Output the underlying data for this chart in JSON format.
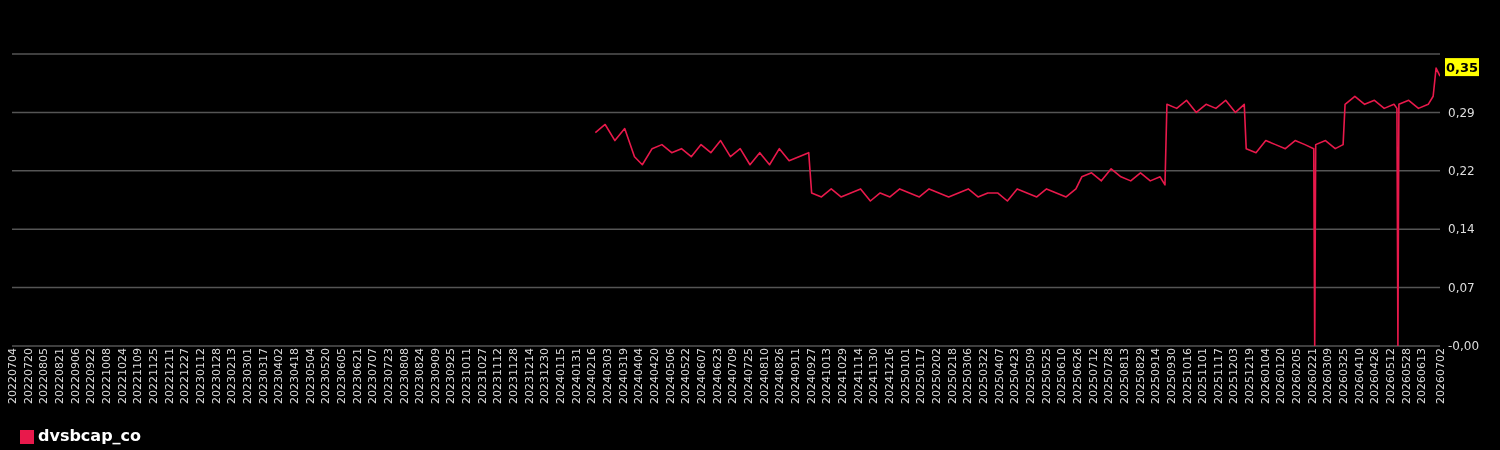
{
  "chart_data": {
    "type": "line",
    "x": [
      "2024-02-20",
      "2024-03-01",
      "2024-03-11",
      "2024-03-21",
      "2024-03-31",
      "2024-04-08",
      "2024-04-18",
      "2024-04-28",
      "2024-05-08",
      "2024-05-18",
      "2024-05-28",
      "2024-06-07",
      "2024-06-17",
      "2024-06-27",
      "2024-07-07",
      "2024-07-17",
      "2024-07-27",
      "2024-08-06",
      "2024-08-16",
      "2024-08-26",
      "2024-09-05",
      "2024-09-15",
      "2024-09-25",
      "2024-09-28",
      "2024-10-08",
      "2024-10-18",
      "2024-10-28",
      "2024-11-07",
      "2024-11-17",
      "2024-11-27",
      "2024-12-07",
      "2024-12-17",
      "2024-12-27",
      "2025-01-06",
      "2025-01-16",
      "2025-01-26",
      "2025-02-05",
      "2025-02-15",
      "2025-02-25",
      "2025-03-07",
      "2025-03-17",
      "2025-03-27",
      "2025-04-06",
      "2025-04-16",
      "2025-04-26",
      "2025-05-06",
      "2025-05-16",
      "2025-05-26",
      "2025-06-05",
      "2025-06-15",
      "2025-06-25",
      "2025-07-01",
      "2025-07-11",
      "2025-07-21",
      "2025-07-31",
      "2025-08-10",
      "2025-08-20",
      "2025-08-30",
      "2025-09-09",
      "2025-09-19",
      "2025-09-24",
      "2025-09-26",
      "2025-10-06",
      "2025-10-16",
      "2025-10-26",
      "2025-11-05",
      "2025-11-15",
      "2025-11-25",
      "2025-12-05",
      "2025-12-14",
      "2025-12-16",
      "2025-12-26",
      "2026-01-05",
      "2026-01-15",
      "2026-01-25",
      "2026-02-04",
      "2026-02-14",
      "2026-02-23",
      "2026-02-24",
      "2026-02-25",
      "2026-03-07",
      "2026-03-17",
      "2026-03-25",
      "2026-03-27",
      "2026-04-06",
      "2026-04-16",
      "2026-04-26",
      "2026-05-06",
      "2026-05-16",
      "2026-05-19",
      "2026-05-20",
      "2026-05-21",
      "2026-05-31",
      "2026-06-10",
      "2026-06-20",
      "2026-06-25",
      "2026-06-28",
      "2026-07-02"
    ],
    "series": [
      {
        "name": "dvsbcap_co",
        "color": "#e8194b",
        "values": [
          0.265,
          0.275,
          0.255,
          0.27,
          0.235,
          0.225,
          0.245,
          0.25,
          0.24,
          0.245,
          0.235,
          0.25,
          0.24,
          0.255,
          0.235,
          0.245,
          0.225,
          0.24,
          0.225,
          0.245,
          0.23,
          0.235,
          0.24,
          0.19,
          0.185,
          0.195,
          0.185,
          0.19,
          0.195,
          0.18,
          0.19,
          0.185,
          0.195,
          0.19,
          0.185,
          0.195,
          0.19,
          0.185,
          0.19,
          0.195,
          0.185,
          0.19,
          0.19,
          0.18,
          0.195,
          0.19,
          0.185,
          0.195,
          0.19,
          0.185,
          0.195,
          0.21,
          0.215,
          0.205,
          0.22,
          0.21,
          0.205,
          0.215,
          0.205,
          0.21,
          0.2,
          0.3,
          0.295,
          0.305,
          0.29,
          0.3,
          0.295,
          0.305,
          0.29,
          0.3,
          0.245,
          0.24,
          0.255,
          0.25,
          0.245,
          0.255,
          0.25,
          0.245,
          0,
          0.25,
          0.255,
          0.245,
          0.25,
          0.3,
          0.31,
          0.3,
          0.305,
          0.295,
          0.3,
          0.295,
          0,
          0.3,
          0.305,
          0.295,
          0.3,
          0.31,
          0.345,
          0.335
        ]
      }
    ],
    "xlim": [
      "2022-07-04",
      "2026-07-02"
    ],
    "xticks": [
      {
        "value": "2022-07-04",
        "label": "20220704"
      },
      {
        "value": "2022-07-20",
        "label": "20220720"
      },
      {
        "value": "2022-08-05",
        "label": "20220805"
      },
      {
        "value": "2022-08-21",
        "label": "20220821"
      },
      {
        "value": "2022-09-06",
        "label": "20220906"
      },
      {
        "value": "2022-09-22",
        "label": "20220922"
      },
      {
        "value": "2022-10-08",
        "label": "20221008"
      },
      {
        "value": "2022-10-24",
        "label": "20221024"
      },
      {
        "value": "2022-11-09",
        "label": "20221109"
      },
      {
        "value": "2022-11-25",
        "label": "20221125"
      },
      {
        "value": "2022-12-11",
        "label": "20221211"
      },
      {
        "value": "2022-12-27",
        "label": "20221227"
      },
      {
        "value": "2023-01-12",
        "label": "20230112"
      },
      {
        "value": "2023-01-28",
        "label": "20230128"
      },
      {
        "value": "2023-02-13",
        "label": "20230213"
      },
      {
        "value": "2023-03-01",
        "label": "20230301"
      },
      {
        "value": "2023-03-17",
        "label": "20230317"
      },
      {
        "value": "2023-04-02",
        "label": "20230402"
      },
      {
        "value": "2023-04-18",
        "label": "20230418"
      },
      {
        "value": "2023-05-04",
        "label": "20230504"
      },
      {
        "value": "2023-05-20",
        "label": "20230520"
      },
      {
        "value": "2023-06-05",
        "label": "20230605"
      },
      {
        "value": "2023-06-21",
        "label": "20230621"
      },
      {
        "value": "2023-07-07",
        "label": "20230707"
      },
      {
        "value": "2023-07-23",
        "label": "20230723"
      },
      {
        "value": "2023-08-08",
        "label": "20230808"
      },
      {
        "value": "2023-08-24",
        "label": "20230824"
      },
      {
        "value": "2023-09-09",
        "label": "20230909"
      },
      {
        "value": "2023-09-25",
        "label": "20230925"
      },
      {
        "value": "2023-10-11",
        "label": "20231011"
      },
      {
        "value": "2023-10-27",
        "label": "20231027"
      },
      {
        "value": "2023-11-12",
        "label": "20231112"
      },
      {
        "value": "2023-11-28",
        "label": "20231128"
      },
      {
        "value": "2023-12-14",
        "label": "20231214"
      },
      {
        "value": "2023-12-30",
        "label": "20231230"
      },
      {
        "value": "2024-01-15",
        "label": "20240115"
      },
      {
        "value": "2024-01-31",
        "label": "20240131"
      },
      {
        "value": "2024-02-16",
        "label": "20240216"
      },
      {
        "value": "2024-03-03",
        "label": "20240303"
      },
      {
        "value": "2024-03-19",
        "label": "20240319"
      },
      {
        "value": "2024-04-04",
        "label": "20240404"
      },
      {
        "value": "2024-04-20",
        "label": "20240420"
      },
      {
        "value": "2024-05-06",
        "label": "20240506"
      },
      {
        "value": "2024-05-22",
        "label": "20240522"
      },
      {
        "value": "2024-06-07",
        "label": "20240607"
      },
      {
        "value": "2024-06-23",
        "label": "20240623"
      },
      {
        "value": "2024-07-09",
        "label": "20240709"
      },
      {
        "value": "2024-07-25",
        "label": "20240725"
      },
      {
        "value": "2024-08-10",
        "label": "20240810"
      },
      {
        "value": "2024-08-26",
        "label": "20240826"
      },
      {
        "value": "2024-09-11",
        "label": "20240911"
      },
      {
        "value": "2024-09-27",
        "label": "20240927"
      },
      {
        "value": "2024-10-13",
        "label": "20241013"
      },
      {
        "value": "2024-10-29",
        "label": "20241029"
      },
      {
        "value": "2024-11-14",
        "label": "20241114"
      },
      {
        "value": "2024-11-30",
        "label": "20241130"
      },
      {
        "value": "2024-12-16",
        "label": "20241216"
      },
      {
        "value": "2025-01-01",
        "label": "20250101"
      },
      {
        "value": "2025-01-17",
        "label": "20250117"
      },
      {
        "value": "2025-02-02",
        "label": "20250202"
      },
      {
        "value": "2025-02-18",
        "label": "20250218"
      },
      {
        "value": "2025-03-06",
        "label": "20250306"
      },
      {
        "value": "2025-03-22",
        "label": "20250322"
      },
      {
        "value": "2025-04-07",
        "label": "20250407"
      },
      {
        "value": "2025-04-23",
        "label": "20250423"
      },
      {
        "value": "2025-05-09",
        "label": "20250509"
      },
      {
        "value": "2025-05-25",
        "label": "20250525"
      },
      {
        "value": "2025-06-10",
        "label": "20250610"
      },
      {
        "value": "2025-06-26",
        "label": "20250626"
      },
      {
        "value": "2025-07-12",
        "label": "20250712"
      },
      {
        "value": "2025-07-28",
        "label": "20250728"
      },
      {
        "value": "2025-08-13",
        "label": "20250813"
      },
      {
        "value": "2025-08-29",
        "label": "20250829"
      },
      {
        "value": "2025-09-14",
        "label": "20250914"
      },
      {
        "value": "2025-09-30",
        "label": "20250930"
      },
      {
        "value": "2025-10-16",
        "label": "20251016"
      },
      {
        "value": "2025-11-01",
        "label": "20251101"
      },
      {
        "value": "2025-11-17",
        "label": "20251117"
      },
      {
        "value": "2025-12-03",
        "label": "20251203"
      },
      {
        "value": "2025-12-19",
        "label": "20251219"
      },
      {
        "value": "2026-01-04",
        "label": "20260104"
      },
      {
        "value": "2026-01-20",
        "label": "20260120"
      },
      {
        "value": "2026-02-05",
        "label": "20260205"
      },
      {
        "value": "2026-02-21",
        "label": "20260221"
      },
      {
        "value": "2026-03-09",
        "label": "20260309"
      },
      {
        "value": "2026-03-25",
        "label": "20260325"
      },
      {
        "value": "2026-04-10",
        "label": "20260410"
      },
      {
        "value": "2026-04-26",
        "label": "20260426"
      },
      {
        "value": "2026-05-12",
        "label": "20260512"
      },
      {
        "value": "2026-05-28",
        "label": "20260528"
      },
      {
        "value": "2026-06-13",
        "label": "20260613"
      },
      {
        "value": "2026-07-02",
        "label": "20260702"
      }
    ],
    "ylim": [
      0,
      0.3625
    ],
    "yticks": [
      {
        "value": 0,
        "label": "-0,00"
      },
      {
        "value": 0.0725,
        "label": "0,07"
      },
      {
        "value": 0.145,
        "label": "0,14"
      },
      {
        "value": 0.2175,
        "label": "0,22"
      },
      {
        "value": 0.29,
        "label": "0,29"
      }
    ],
    "annotations": [
      {
        "text": "0,35",
        "x": "2026-06-28",
        "y": 0.345
      }
    ],
    "grid": "y",
    "legend": "bottom left",
    "line_style": "solid"
  }
}
